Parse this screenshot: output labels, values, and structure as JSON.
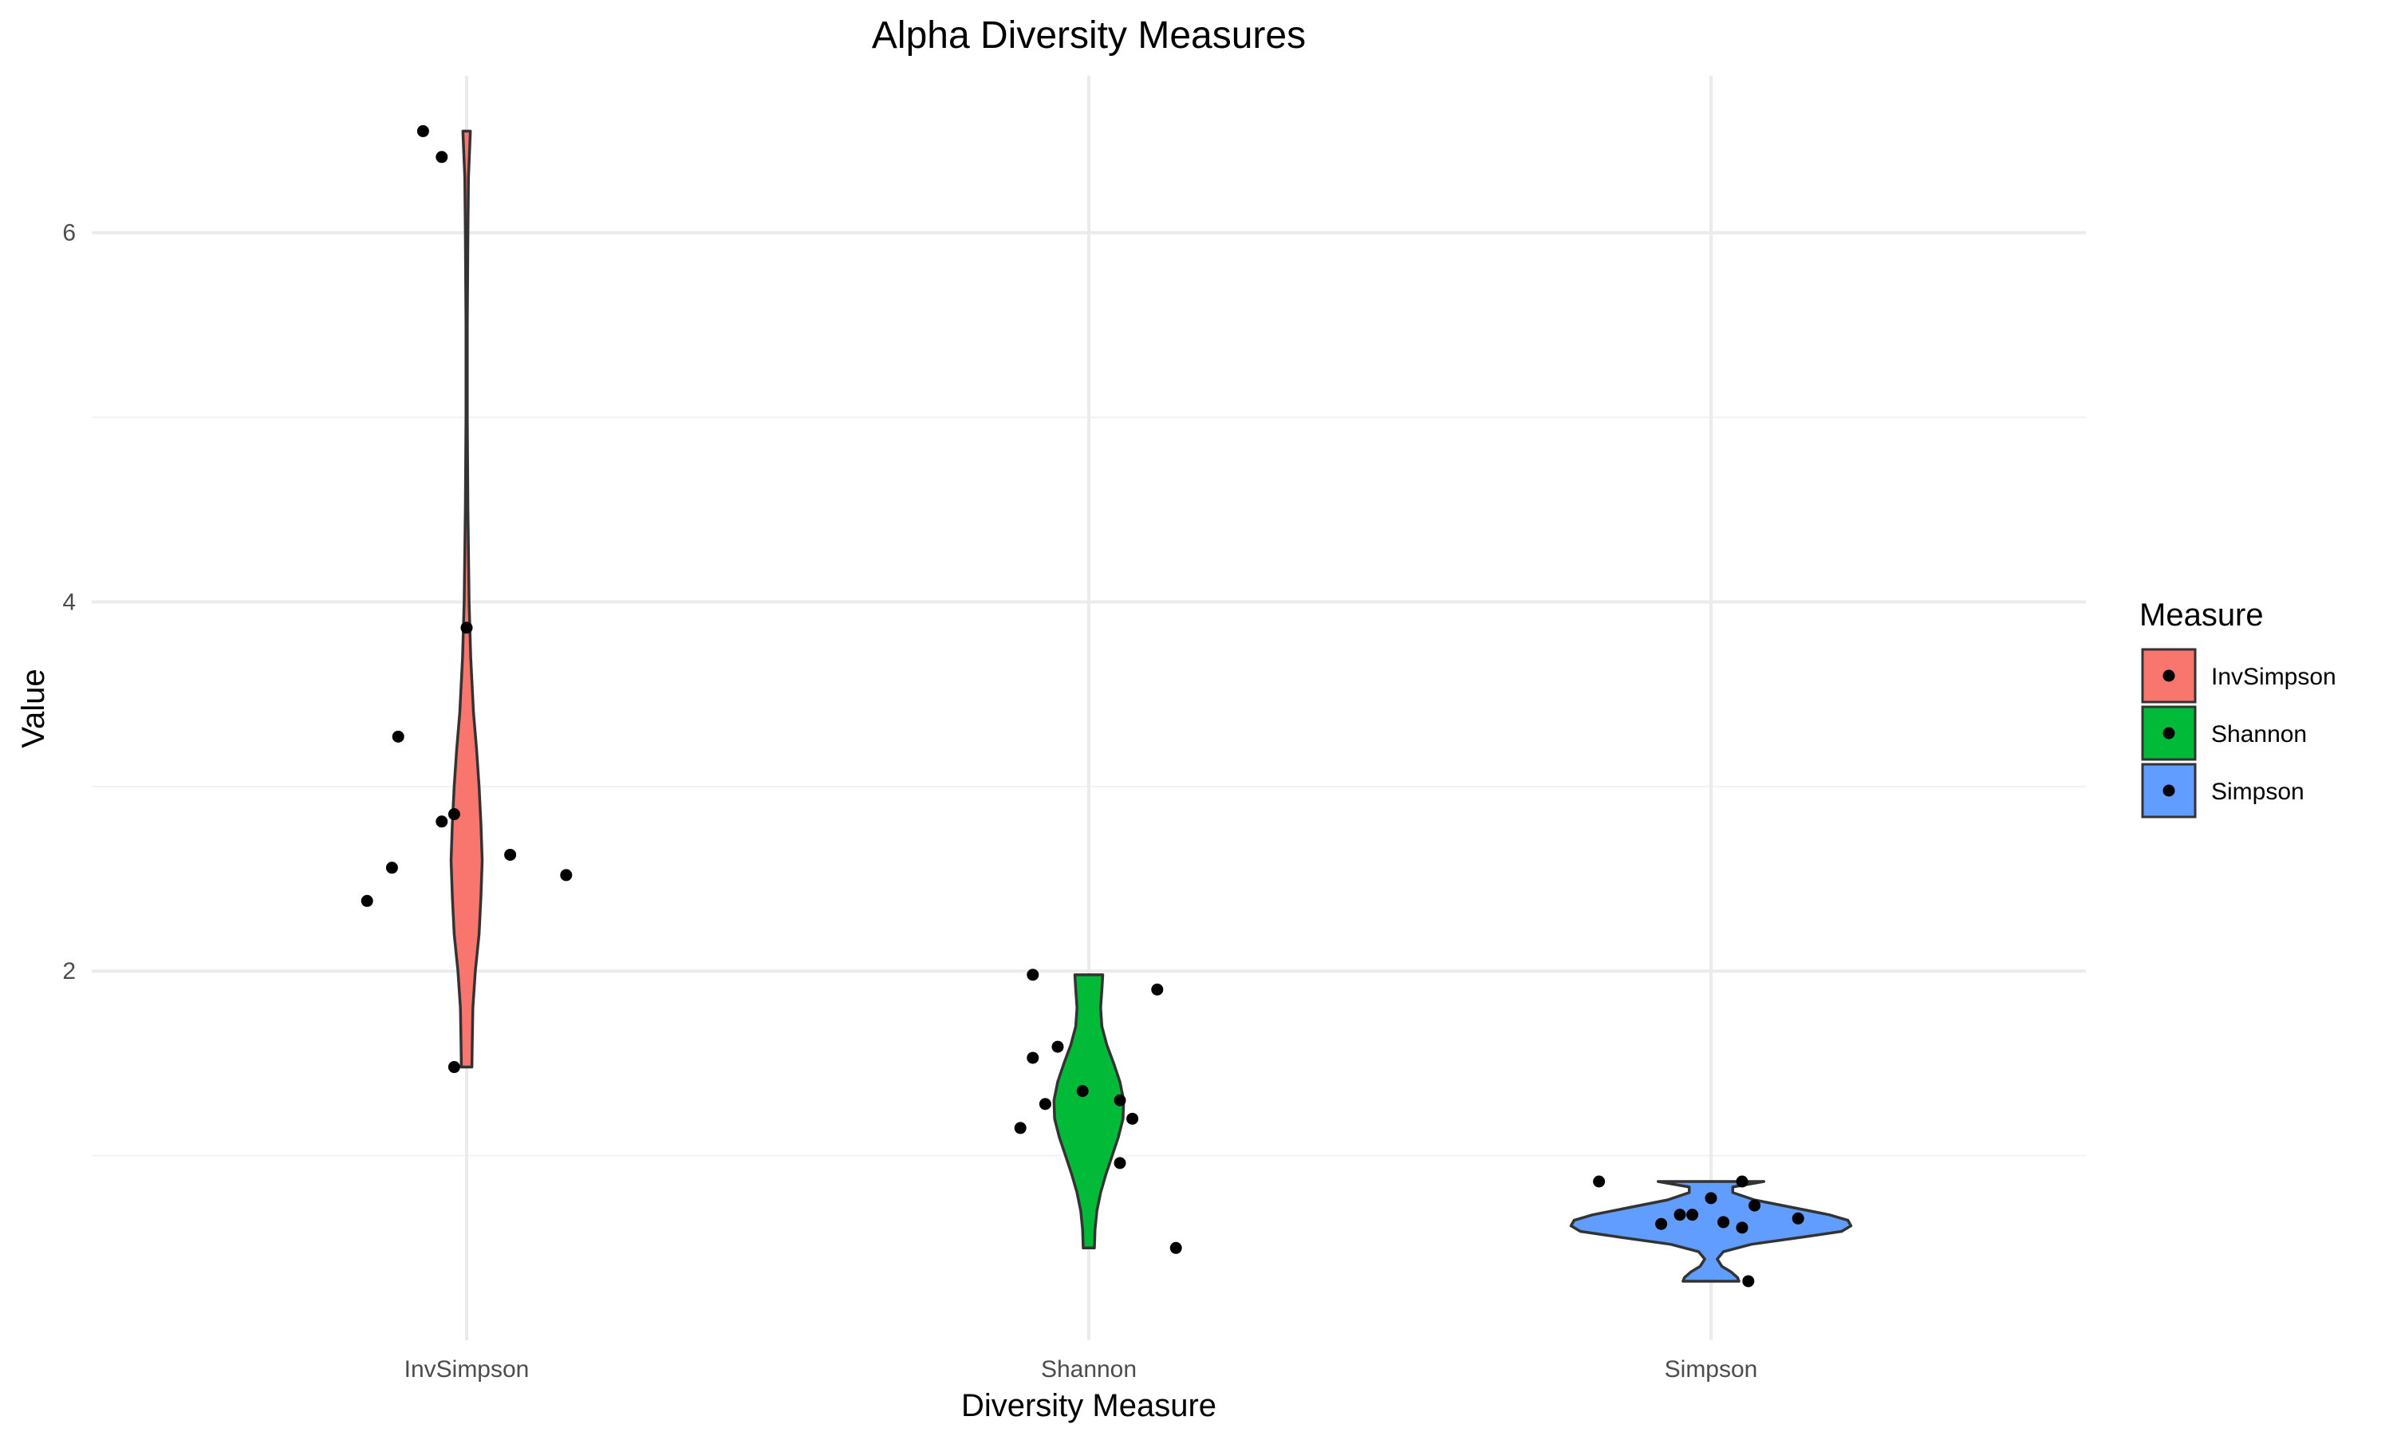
{
  "chart_data": {
    "type": "violin",
    "title": "Alpha Diversity Measures",
    "xlabel": "Diversity Measure",
    "ylabel": "Value",
    "categories": [
      "InvSimpson",
      "Shannon",
      "Simpson"
    ],
    "ylim": [
      0,
      6.85
    ],
    "yticks": [
      2,
      4,
      6
    ],
    "grid": true,
    "legend": {
      "title": "Measure",
      "position": "right",
      "entries": [
        "InvSimpson",
        "Shannon",
        "Simpson"
      ]
    },
    "colors": {
      "InvSimpson": "#F8766D",
      "Shannon": "#00BA38",
      "Simpson": "#619CFF",
      "outline": "#333333",
      "points": "#000000"
    },
    "series": [
      {
        "name": "InvSimpson",
        "points": [
          {
            "jitter": -0.07,
            "y": 6.55
          },
          {
            "jitter": -0.04,
            "y": 6.41
          },
          {
            "jitter": 0.0,
            "y": 3.86
          },
          {
            "jitter": -0.11,
            "y": 3.27
          },
          {
            "jitter": -0.02,
            "y": 2.85
          },
          {
            "jitter": -0.04,
            "y": 2.81
          },
          {
            "jitter": 0.07,
            "y": 2.63
          },
          {
            "jitter": -0.12,
            "y": 2.56
          },
          {
            "jitter": 0.16,
            "y": 2.52
          },
          {
            "jitter": -0.16,
            "y": 2.38
          },
          {
            "jitter": -0.02,
            "y": 1.48
          }
        ],
        "violin": {
          "ymin": 1.48,
          "ymax": 6.55,
          "profile": [
            [
              1.48,
              0.017
            ],
            [
              1.6,
              0.018
            ],
            [
              1.8,
              0.02
            ],
            [
              2.0,
              0.028
            ],
            [
              2.2,
              0.04
            ],
            [
              2.4,
              0.046
            ],
            [
              2.6,
              0.05
            ],
            [
              2.8,
              0.046
            ],
            [
              3.0,
              0.04
            ],
            [
              3.2,
              0.032
            ],
            [
              3.4,
              0.022
            ],
            [
              3.7,
              0.013
            ],
            [
              4.0,
              0.008
            ],
            [
              4.5,
              0.004
            ],
            [
              5.0,
              0.002
            ],
            [
              5.5,
              0.002
            ],
            [
              6.0,
              0.004
            ],
            [
              6.3,
              0.006
            ],
            [
              6.55,
              0.012
            ]
          ]
        }
      },
      {
        "name": "Shannon",
        "points": [
          {
            "jitter": -0.09,
            "y": 1.98
          },
          {
            "jitter": 0.11,
            "y": 1.9
          },
          {
            "jitter": -0.05,
            "y": 1.59
          },
          {
            "jitter": -0.09,
            "y": 1.53
          },
          {
            "jitter": -0.01,
            "y": 1.35
          },
          {
            "jitter": 0.05,
            "y": 1.3
          },
          {
            "jitter": -0.07,
            "y": 1.28
          },
          {
            "jitter": 0.07,
            "y": 1.2
          },
          {
            "jitter": -0.11,
            "y": 1.15
          },
          {
            "jitter": 0.05,
            "y": 0.96
          },
          {
            "jitter": 0.14,
            "y": 0.5
          }
        ],
        "violin": {
          "ymin": 0.5,
          "ymax": 1.98,
          "profile": [
            [
              0.5,
              0.018
            ],
            [
              0.6,
              0.02
            ],
            [
              0.7,
              0.026
            ],
            [
              0.8,
              0.038
            ],
            [
              0.9,
              0.055
            ],
            [
              1.0,
              0.075
            ],
            [
              1.1,
              0.095
            ],
            [
              1.2,
              0.11
            ],
            [
              1.3,
              0.112
            ],
            [
              1.4,
              0.1
            ],
            [
              1.5,
              0.08
            ],
            [
              1.6,
              0.058
            ],
            [
              1.7,
              0.042
            ],
            [
              1.8,
              0.038
            ],
            [
              1.9,
              0.042
            ],
            [
              1.98,
              0.045
            ]
          ]
        }
      },
      {
        "name": "Simpson",
        "points": [
          {
            "jitter": -0.18,
            "y": 0.86
          },
          {
            "jitter": 0.05,
            "y": 0.86
          },
          {
            "jitter": 0.0,
            "y": 0.77
          },
          {
            "jitter": 0.07,
            "y": 0.73
          },
          {
            "jitter": -0.03,
            "y": 0.68
          },
          {
            "jitter": -0.05,
            "y": 0.68
          },
          {
            "jitter": 0.14,
            "y": 0.66
          },
          {
            "jitter": 0.02,
            "y": 0.64
          },
          {
            "jitter": -0.08,
            "y": 0.63
          },
          {
            "jitter": 0.05,
            "y": 0.61
          },
          {
            "jitter": 0.06,
            "y": 0.32
          }
        ],
        "violin": {
          "ymin": 0.32,
          "ymax": 0.86,
          "profile": [
            [
              0.32,
              0.09
            ],
            [
              0.34,
              0.085
            ],
            [
              0.37,
              0.065
            ],
            [
              0.4,
              0.035
            ],
            [
              0.44,
              0.02
            ],
            [
              0.48,
              0.04
            ],
            [
              0.52,
              0.13
            ],
            [
              0.56,
              0.3
            ],
            [
              0.59,
              0.42
            ],
            [
              0.62,
              0.45
            ],
            [
              0.65,
              0.44
            ],
            [
              0.68,
              0.38
            ],
            [
              0.72,
              0.26
            ],
            [
              0.76,
              0.14
            ],
            [
              0.8,
              0.07
            ],
            [
              0.83,
              0.07
            ],
            [
              0.86,
              0.17
            ]
          ]
        }
      }
    ]
  }
}
